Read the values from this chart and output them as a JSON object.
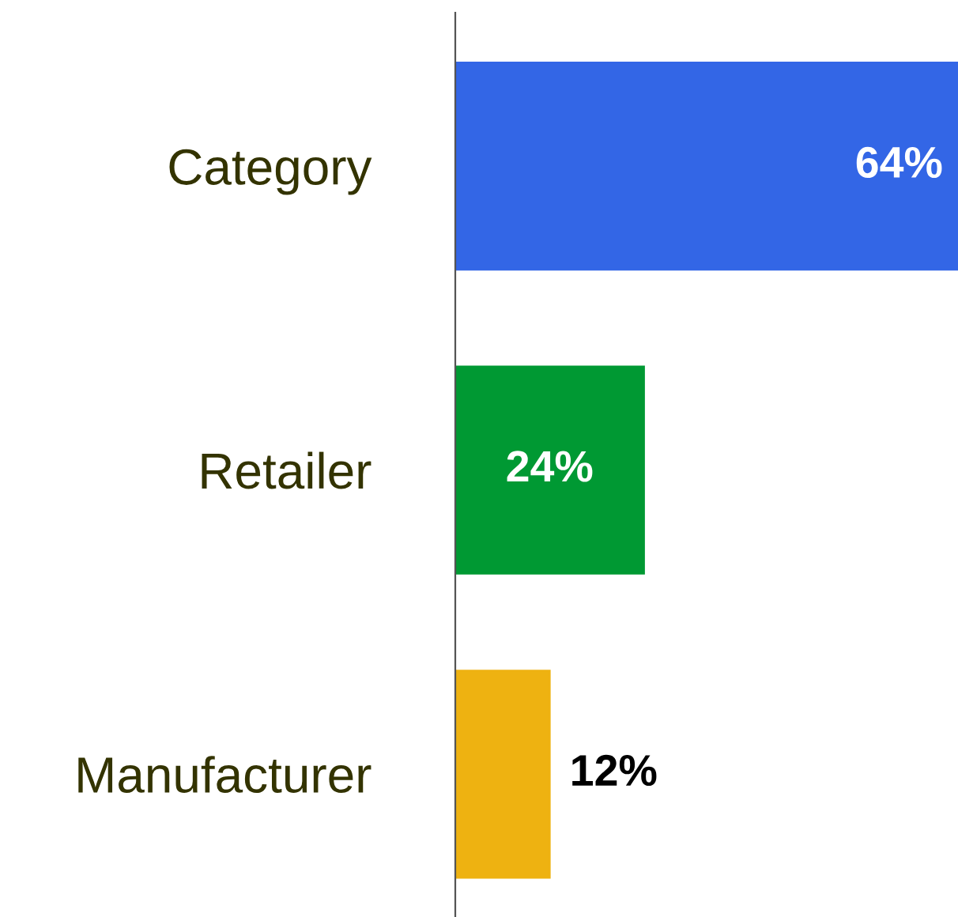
{
  "chart_data": {
    "type": "bar",
    "orientation": "horizontal",
    "categories": [
      "Category",
      "Retailer",
      "Manufacturer"
    ],
    "values": [
      64,
      24,
      12
    ],
    "colors": [
      "#3366e6",
      "#009933",
      "#eeb211"
    ],
    "value_labels": [
      "64%",
      "24%",
      "12%"
    ],
    "grid": false,
    "legend": false
  }
}
